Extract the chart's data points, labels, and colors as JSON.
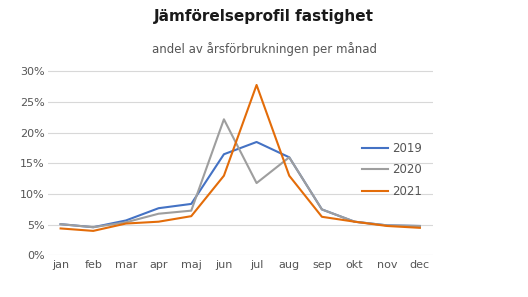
{
  "title": "Jämförelseprofil fastighet",
  "subtitle": "andel av årsförbrukningen per månad",
  "months": [
    "jan",
    "feb",
    "mar",
    "apr",
    "maj",
    "jun",
    "jul",
    "aug",
    "sep",
    "okt",
    "nov",
    "dec"
  ],
  "series": {
    "2019": [
      0.051,
      0.046,
      0.057,
      0.077,
      0.084,
      0.165,
      0.185,
      0.16,
      0.075,
      0.055,
      0.049,
      0.048
    ],
    "2020": [
      0.051,
      0.046,
      0.054,
      0.068,
      0.073,
      0.222,
      0.118,
      0.16,
      0.075,
      0.055,
      0.049,
      0.048
    ],
    "2021": [
      0.044,
      0.04,
      0.052,
      0.055,
      0.064,
      0.13,
      0.278,
      0.13,
      0.063,
      0.055,
      0.048,
      0.045
    ]
  },
  "colors": {
    "2019": "#4472C4",
    "2020": "#9E9E9E",
    "2021": "#E36C09"
  },
  "ylim": [
    0,
    0.31
  ],
  "yticks": [
    0.0,
    0.05,
    0.1,
    0.15,
    0.2,
    0.25,
    0.3
  ],
  "background_color": "#ffffff",
  "grid_color": "#d8d8d8",
  "legend_labels": [
    "2019",
    "2020",
    "2021"
  ],
  "title_fontsize": 11,
  "subtitle_fontsize": 8.5,
  "tick_fontsize": 8,
  "legend_fontsize": 8.5
}
